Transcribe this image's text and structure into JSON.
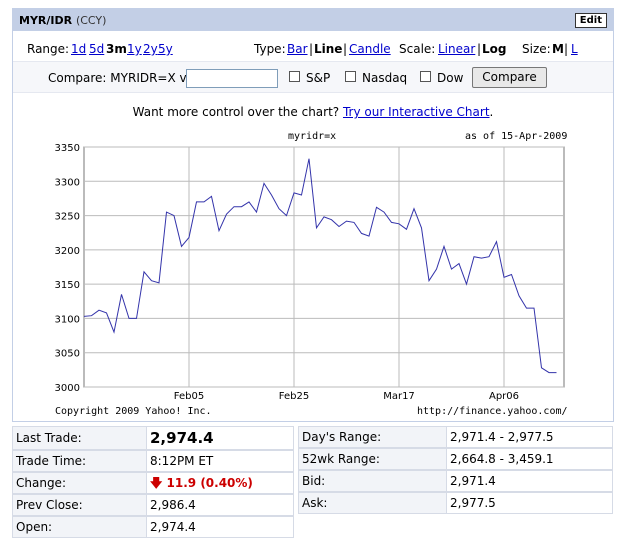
{
  "header": {
    "symbol": "MYR/IDR",
    "ccy": "(CCY)",
    "edit": "Edit"
  },
  "controls": {
    "range_label": "Range:",
    "ranges": [
      "1d",
      "5d",
      "3m",
      "1y",
      "2y",
      "5y"
    ],
    "range_selected": "3m",
    "type_label": "Type:",
    "types": [
      "Bar",
      "Line",
      "Candle"
    ],
    "type_selected": "Line",
    "scale_label": "Scale:",
    "scales": [
      "Linear",
      "Log"
    ],
    "scale_selected": "Log",
    "size_label": "Size:",
    "sizes": [
      "M",
      "L"
    ],
    "size_selected": "M",
    "sep": "|"
  },
  "compare": {
    "label": "Compare: MYRIDR=X vs",
    "input_value": "",
    "checkboxes": [
      "S&P",
      "Nasdaq",
      "Dow"
    ],
    "button": "Compare"
  },
  "promo": {
    "text": "Want more control over the chart?",
    "link": "Try our Interactive Chart",
    "end": "."
  },
  "chart_data": {
    "type": "line",
    "title": "myridr=x",
    "asof": "as of 15-Apr-2009",
    "copyright": "Copyright 2009 Yahoo! Inc.",
    "url": "http://finance.yahoo.com/",
    "ylim": [
      3000,
      3350
    ],
    "yticks": [
      3000,
      3050,
      3100,
      3150,
      3200,
      3250,
      3300,
      3350
    ],
    "xticks": [
      {
        "label": "Feb05",
        "i": 14
      },
      {
        "label": "Feb25",
        "i": 28
      },
      {
        "label": "Mar17",
        "i": 42
      },
      {
        "label": "Apr06",
        "i": 56
      }
    ],
    "values": [
      3103,
      3104,
      3112,
      3108,
      3080,
      3135,
      3100,
      3100,
      3168,
      3155,
      3152,
      3255,
      3250,
      3205,
      3218,
      3270,
      3270,
      3278,
      3228,
      3252,
      3263,
      3263,
      3270,
      3255,
      3297,
      3280,
      3260,
      3250,
      3283,
      3280,
      3333,
      3232,
      3248,
      3244,
      3234,
      3242,
      3240,
      3224,
      3220,
      3262,
      3255,
      3240,
      3238,
      3230,
      3260,
      3232,
      3155,
      3172,
      3205,
      3172,
      3180,
      3150,
      3190,
      3188,
      3190,
      3212,
      3160,
      3164,
      3133,
      3115,
      3115,
      3028,
      3021,
      3021
    ],
    "n": 64
  },
  "quote_left": [
    {
      "label": "Last Trade:",
      "value": "2,974.4"
    },
    {
      "label": "Trade Time:",
      "value": "8:12PM ET"
    },
    {
      "label": "Change:",
      "value": "11.9 (0.40%)"
    },
    {
      "label": "Prev Close:",
      "value": "2,986.4"
    },
    {
      "label": "Open:",
      "value": "2,974.4"
    }
  ],
  "quote_right": [
    {
      "label": "Day's Range:",
      "value": "2,971.4 - 2,977.5"
    },
    {
      "label": "52wk Range:",
      "value": "2,664.8 - 3,459.1"
    },
    {
      "label": "Bid:",
      "value": "2,971.4"
    },
    {
      "label": "Ask:",
      "value": "2,977.5"
    }
  ],
  "colors": {
    "down": "#cc0000",
    "line": "#3333aa",
    "header": "#c3cfe6"
  }
}
